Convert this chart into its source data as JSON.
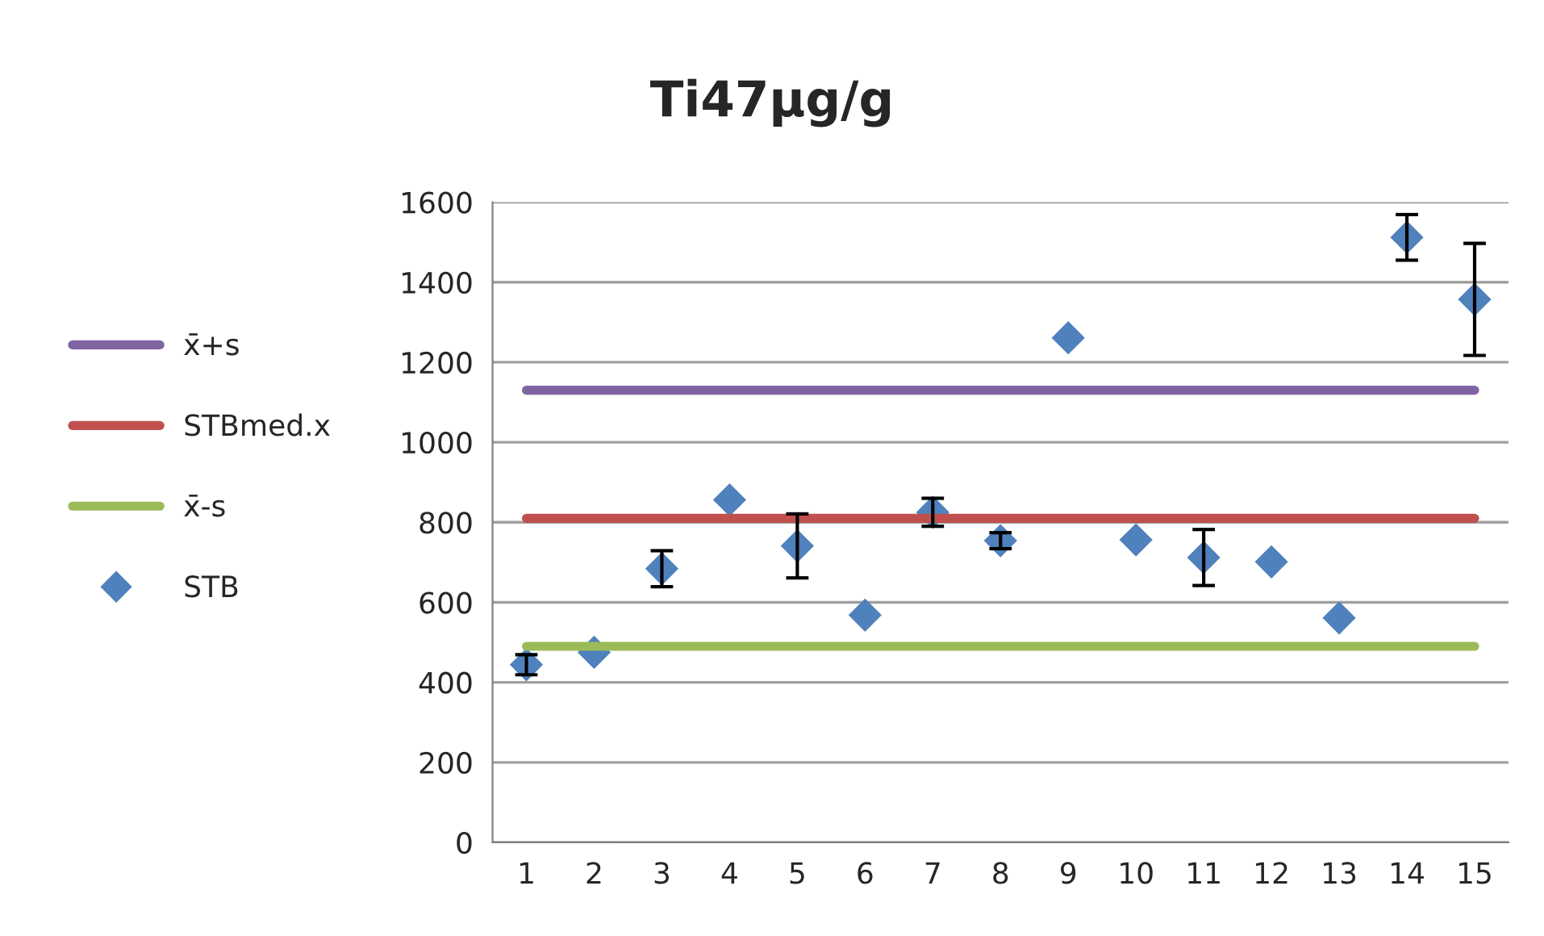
{
  "chart_data": {
    "type": "scatter",
    "title": "Ti47µg/g",
    "categories": [
      "1",
      "2",
      "3",
      "4",
      "5",
      "6",
      "7",
      "8",
      "9",
      "10",
      "11",
      "12",
      "13",
      "14",
      "15"
    ],
    "series": [
      {
        "name": "x̄+s",
        "type": "line",
        "color": "#8064a2",
        "marker": "none",
        "values": [
          1130,
          1130,
          1130,
          1130,
          1130,
          1130,
          1130,
          1130,
          1130,
          1130,
          1130,
          1130,
          1130,
          1130,
          1130
        ]
      },
      {
        "name": "STBmed.x",
        "type": "line",
        "color": "#c0504d",
        "marker": "none",
        "values": [
          810,
          810,
          810,
          810,
          810,
          810,
          810,
          810,
          810,
          810,
          810,
          810,
          810,
          810,
          810
        ]
      },
      {
        "name": "x̄-s",
        "type": "line",
        "color": "#9bbb59",
        "marker": "none",
        "values": [
          490,
          490,
          490,
          490,
          490,
          490,
          490,
          490,
          490,
          490,
          490,
          490,
          490,
          490,
          490
        ]
      },
      {
        "name": "STB",
        "color": "#4f81bd",
        "marker": "diamond",
        "values": [
          444,
          475,
          684,
          856,
          741,
          568,
          825,
          754,
          1261,
          756,
          712,
          701,
          561,
          1512,
          1357
        ],
        "errors": [
          25,
          null,
          45,
          null,
          80,
          null,
          35,
          20,
          null,
          null,
          70,
          null,
          null,
          57,
          140
        ]
      }
    ],
    "ylim": [
      0,
      1600
    ],
    "yticks": [
      0,
      200,
      400,
      600,
      800,
      1000,
      1200,
      1400,
      1600
    ],
    "grid": "y",
    "legend": "left"
  }
}
